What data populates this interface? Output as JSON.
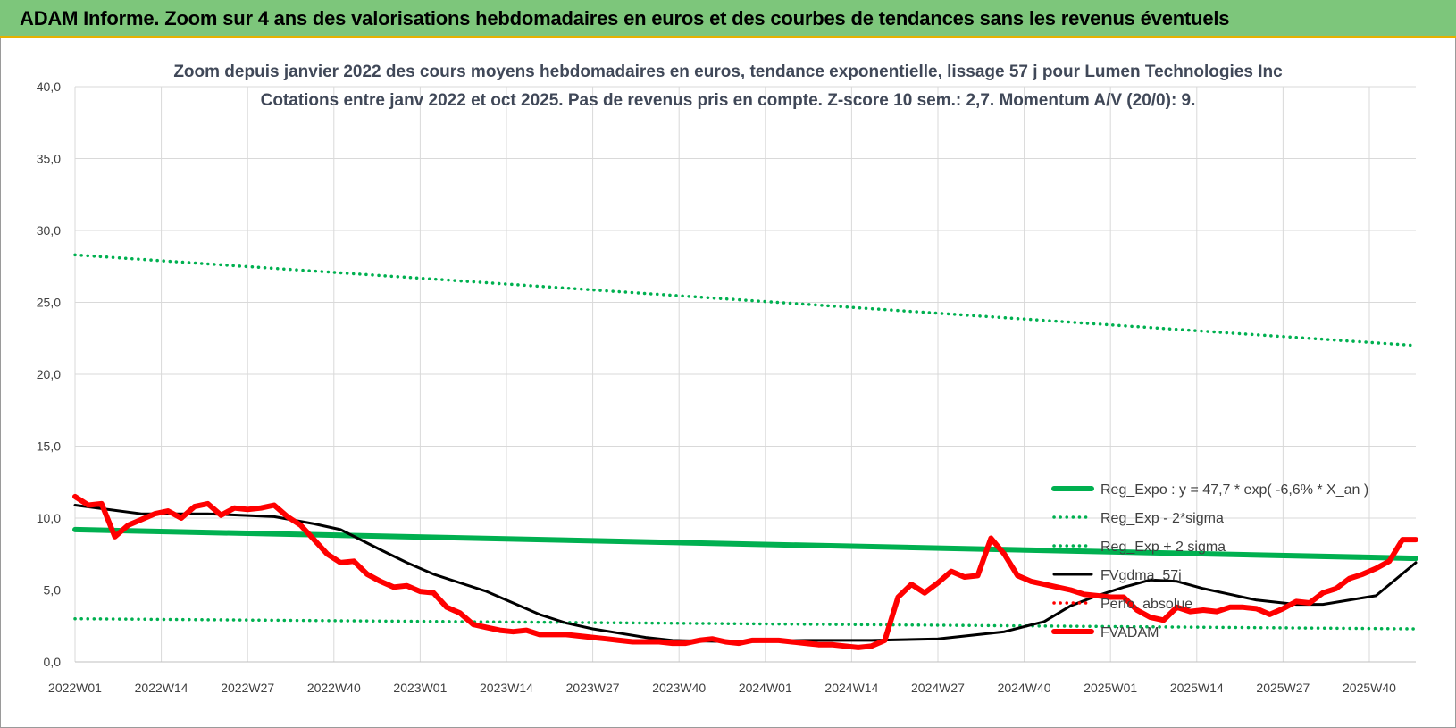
{
  "header": {
    "title": "ADAM Informe. Zoom sur 4 ans des valorisations hebdomadaires en euros et des courbes de tendances sans les revenus éventuels"
  },
  "chart_data": {
    "type": "line",
    "title": "Zoom depuis janvier 2022 des cours moyens hebdomadaires en euros, tendance exponentielle, lissage 57 j pour Lumen Technologies Inc",
    "subtitle": "Cotations entre janv 2022 et oct 2025. Pas de revenus pris en compte. Z-score 10 sem.: 2,7. Momentum A/V (20/0): 9.",
    "ylim": [
      0,
      40
    ],
    "yticks": [
      "0,0",
      "5,0",
      "10,0",
      "15,0",
      "20,0",
      "25,0",
      "30,0",
      "35,0",
      "40,0"
    ],
    "xticks": [
      "2022W01",
      "2022W14",
      "2022W27",
      "2022W40",
      "2023W01",
      "2023W14",
      "2023W27",
      "2023W40",
      "2024W01",
      "2024W14",
      "2024W27",
      "2024W40",
      "2025W01",
      "2025W14",
      "2025W27",
      "2025W40"
    ],
    "grid": true,
    "legend_position": "right",
    "weeks_total": 202,
    "series": [
      {
        "name": "Reg_Expo : y = 47,7 * exp( -6,6% *  X_an )",
        "style": "solid-thick",
        "color": "#00b050",
        "x": [
          0,
          202
        ],
        "values": [
          9.2,
          7.2
        ]
      },
      {
        "name": "Reg_Exp - 2*sigma",
        "style": "dotted",
        "color": "#00b050",
        "x": [
          0,
          202
        ],
        "values": [
          3.0,
          2.3
        ]
      },
      {
        "name": "Reg_Exp + 2 sigma",
        "style": "dotted",
        "color": "#00b050",
        "x": [
          0,
          202
        ],
        "values": [
          28.3,
          22.0
        ]
      },
      {
        "name": "FVgdma_57j",
        "style": "solid",
        "color": "#000000",
        "x": [
          0,
          10,
          20,
          30,
          36,
          40,
          46,
          50,
          54,
          58,
          62,
          66,
          70,
          74,
          78,
          82,
          86,
          90,
          100,
          110,
          120,
          130,
          140,
          146,
          150,
          154,
          158,
          162,
          166,
          170,
          174,
          178,
          184,
          188,
          196,
          202
        ],
        "values": [
          10.9,
          10.3,
          10.3,
          10.1,
          9.6,
          9.2,
          7.8,
          6.9,
          6.1,
          5.5,
          4.9,
          4.1,
          3.3,
          2.7,
          2.3,
          2.0,
          1.7,
          1.5,
          1.4,
          1.5,
          1.5,
          1.6,
          2.1,
          2.8,
          3.9,
          4.6,
          5.2,
          5.7,
          5.6,
          5.1,
          4.7,
          4.3,
          4.0,
          4.0,
          4.6,
          6.9
        ]
      },
      {
        "name": "Perfo. absolue",
        "style": "dotted",
        "color": "#ff0000",
        "x": [],
        "values": []
      },
      {
        "name": "FVADAM",
        "style": "solid-thick",
        "color": "#ff0000",
        "x": [
          0,
          2,
          4,
          6,
          8,
          10,
          12,
          14,
          16,
          18,
          20,
          22,
          24,
          26,
          28,
          30,
          32,
          34,
          36,
          38,
          40,
          42,
          44,
          46,
          48,
          50,
          52,
          54,
          56,
          58,
          60,
          62,
          64,
          66,
          68,
          70,
          72,
          74,
          76,
          78,
          80,
          82,
          84,
          86,
          88,
          90,
          92,
          94,
          96,
          98,
          100,
          102,
          104,
          106,
          108,
          110,
          112,
          114,
          116,
          118,
          120,
          122,
          124,
          126,
          128,
          130,
          132,
          134,
          136,
          138,
          140,
          142,
          144,
          146,
          148,
          150,
          152,
          154,
          156,
          158,
          160,
          162,
          164,
          166,
          168,
          170,
          172,
          174,
          176,
          178,
          180,
          182,
          184,
          186,
          188,
          190,
          192,
          194,
          196,
          198,
          200,
          202
        ],
        "values": [
          11.5,
          10.9,
          11.0,
          8.7,
          9.5,
          9.9,
          10.3,
          10.5,
          10.0,
          10.8,
          11.0,
          10.2,
          10.7,
          10.6,
          10.7,
          10.9,
          10.1,
          9.5,
          8.5,
          7.5,
          6.9,
          7.0,
          6.1,
          5.6,
          5.2,
          5.3,
          4.9,
          4.8,
          3.8,
          3.4,
          2.6,
          2.4,
          2.2,
          2.1,
          2.2,
          1.9,
          1.9,
          1.9,
          1.8,
          1.7,
          1.6,
          1.5,
          1.4,
          1.4,
          1.4,
          1.3,
          1.3,
          1.5,
          1.6,
          1.4,
          1.3,
          1.5,
          1.5,
          1.5,
          1.4,
          1.3,
          1.2,
          1.2,
          1.1,
          1.0,
          1.1,
          1.5,
          4.5,
          5.4,
          4.8,
          5.5,
          6.3,
          5.9,
          6.0,
          8.6,
          7.5,
          6.0,
          5.6,
          5.4,
          5.2,
          5.0,
          4.7,
          4.6,
          4.5,
          4.5,
          3.6,
          3.1,
          2.9,
          3.8,
          3.5,
          3.6,
          3.5,
          3.8,
          3.8,
          3.7,
          3.3,
          3.7,
          4.2,
          4.1,
          4.8,
          5.1,
          5.8,
          6.1,
          6.5,
          7.0,
          8.5,
          8.5
        ]
      }
    ]
  }
}
